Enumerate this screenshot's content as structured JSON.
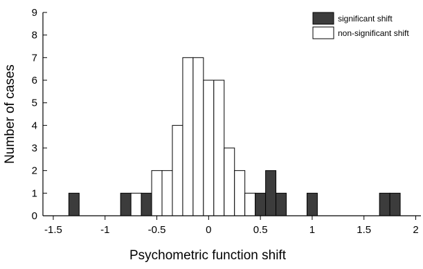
{
  "chart_data": {
    "type": "bar",
    "title": "",
    "xlabel": "Psychometric function shift",
    "ylabel": "Number of cases",
    "xlim": [
      -1.6,
      2.05
    ],
    "ylim": [
      0,
      9
    ],
    "bin_width": 0.1,
    "x_ticks": [
      -1.5,
      -1,
      -0.5,
      0,
      0.5,
      1,
      1.5,
      2
    ],
    "x_tick_labels": [
      "-1.5",
      "-1",
      "-0.5",
      "0",
      "0.5",
      "1",
      "1.5",
      "2"
    ],
    "y_ticks": [
      0,
      1,
      2,
      3,
      4,
      5,
      6,
      7,
      8,
      9
    ],
    "y_tick_labels": [
      "0",
      "1",
      "2",
      "3",
      "4",
      "5",
      "6",
      "7",
      "8",
      "9"
    ],
    "grid": false,
    "stacked": true,
    "legend_position": "top-right",
    "bin_centers": [
      -1.3,
      -1.2,
      -1.1,
      -1.0,
      -0.9,
      -0.8,
      -0.7,
      -0.6,
      -0.5,
      -0.4,
      -0.3,
      -0.2,
      -0.1,
      0.0,
      0.1,
      0.2,
      0.3,
      0.4,
      0.5,
      0.6,
      0.7,
      0.8,
      0.9,
      1.0,
      1.1,
      1.2,
      1.3,
      1.4,
      1.5,
      1.6,
      1.7,
      1.8,
      1.9
    ],
    "series": [
      {
        "name": "significant shift",
        "color": "#3c3c3c",
        "values": [
          1,
          0,
          0,
          0,
          0,
          1,
          0,
          1,
          0,
          0,
          0,
          0,
          0,
          0,
          0,
          0,
          0,
          0,
          1,
          2,
          1,
          0,
          0,
          1,
          0,
          0,
          0,
          0,
          0,
          0,
          1,
          1,
          0
        ]
      },
      {
        "name": "non-significant shift",
        "color": "#ffffff",
        "values": [
          0,
          0,
          0,
          0,
          0,
          0,
          1,
          0,
          2,
          2,
          4,
          7,
          7,
          6,
          6,
          3,
          2,
          1,
          0,
          0,
          0,
          0,
          0,
          0,
          0,
          0,
          0,
          0,
          0,
          0,
          0,
          0,
          0
        ]
      }
    ]
  }
}
